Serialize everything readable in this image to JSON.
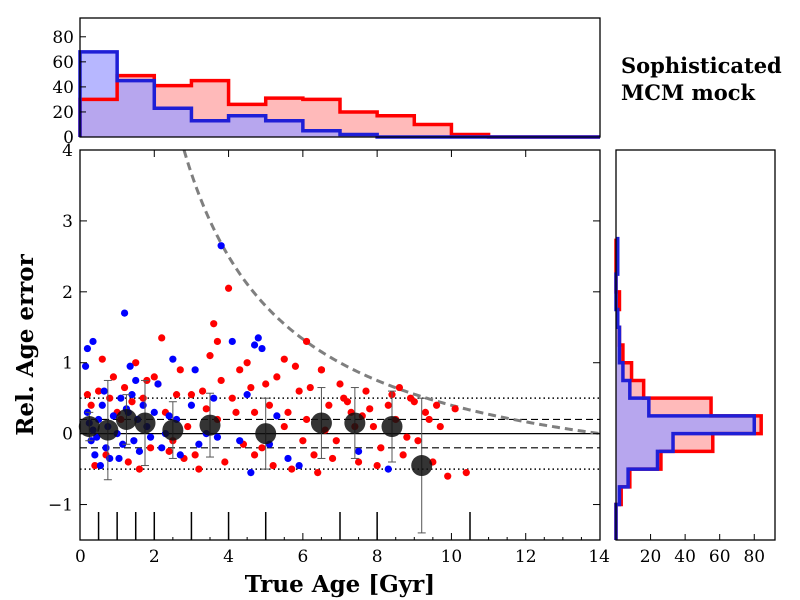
{
  "chart_data": [
    {
      "id": "top-histogram",
      "type": "histogram",
      "x_edges": [
        0,
        1,
        2,
        3,
        4,
        5,
        6,
        7,
        8,
        9,
        10,
        11,
        12,
        13,
        14
      ],
      "series": [
        {
          "name": "red",
          "color": "#ff0000",
          "fill": "#ffb3b3",
          "counts": [
            30,
            49,
            41,
            45,
            26,
            31,
            30,
            20,
            17,
            10,
            2,
            0,
            0,
            0
          ]
        },
        {
          "name": "blue",
          "color": "#1f1fd6",
          "fill": "#9f9fff",
          "counts": [
            68,
            45,
            23,
            13,
            17,
            13,
            5,
            2,
            0,
            0,
            0,
            0,
            0,
            0
          ]
        }
      ],
      "ylim": [
        0,
        95
      ],
      "yticks": [
        "0",
        "20",
        "40",
        "60",
        "80"
      ]
    },
    {
      "id": "main-scatter",
      "type": "scatter",
      "xlabel": "True Age [Gyr]",
      "ylabel": "Rel. Age error",
      "xlim": [
        0,
        14
      ],
      "ylim": [
        -1.5,
        4
      ],
      "xticks": [
        "0",
        "2",
        "4",
        "6",
        "8",
        "10",
        "12",
        "14"
      ],
      "yticks": [
        "−1",
        "0",
        "1",
        "2",
        "3",
        "4"
      ],
      "reference_lines": {
        "solid": 0,
        "dashed": [
          -0.2,
          0.2
        ],
        "dotted": [
          -0.5,
          0.5
        ]
      },
      "dashed_curve": "y = 14 / x − 1",
      "rug_x": [
        0.5,
        1.0,
        1.5,
        2.0,
        3.0,
        4.0,
        5.0,
        7.0,
        8.0,
        10.5
      ],
      "binned_means": [
        {
          "x": 0.25,
          "y": 0.1,
          "err": 0.2
        },
        {
          "x": 0.75,
          "y": 0.05,
          "err": 0.7
        },
        {
          "x": 1.25,
          "y": 0.2,
          "err": 0.35
        },
        {
          "x": 1.75,
          "y": 0.15,
          "err": 0.6
        },
        {
          "x": 2.5,
          "y": 0.05,
          "err": 0.4
        },
        {
          "x": 3.5,
          "y": 0.12,
          "err": 0.45
        },
        {
          "x": 5.0,
          "y": 0.0,
          "err": 0.5
        },
        {
          "x": 6.5,
          "y": 0.15,
          "err": 0.5
        },
        {
          "x": 7.4,
          "y": 0.15,
          "err": 0.5
        },
        {
          "x": 8.4,
          "y": 0.1,
          "err": 0.5
        },
        {
          "x": 9.2,
          "y": -0.45,
          "err": 0.95
        }
      ],
      "series": [
        {
          "name": "blue",
          "color": "#0000ff",
          "points": [
            [
              0.2,
              0.3
            ],
            [
              0.3,
              -0.1
            ],
            [
              0.25,
              0.15
            ],
            [
              0.35,
              0.05
            ],
            [
              0.4,
              -0.3
            ],
            [
              0.5,
              0.2
            ],
            [
              0.45,
              -0.05
            ],
            [
              0.6,
              0.4
            ],
            [
              0.7,
              -0.2
            ],
            [
              0.75,
              0.1
            ],
            [
              0.8,
              -0.35
            ],
            [
              0.9,
              0.25
            ],
            [
              1.0,
              0.0
            ],
            [
              1.1,
              0.5
            ],
            [
              1.15,
              -0.15
            ],
            [
              1.2,
              1.7
            ],
            [
              1.3,
              0.3
            ],
            [
              1.4,
              0.55
            ],
            [
              1.45,
              -0.1
            ],
            [
              1.5,
              0.75
            ],
            [
              1.55,
              0.2
            ],
            [
              1.6,
              -0.25
            ],
            [
              1.7,
              0.4
            ],
            [
              1.8,
              0.1
            ],
            [
              1.9,
              -0.05
            ],
            [
              2.0,
              0.3
            ],
            [
              2.2,
              -0.2
            ],
            [
              2.3,
              0.0
            ],
            [
              2.5,
              1.05
            ],
            [
              2.6,
              0.2
            ],
            [
              2.7,
              -0.3
            ],
            [
              3.0,
              0.4
            ],
            [
              3.2,
              -0.15
            ],
            [
              3.4,
              0.0
            ],
            [
              3.6,
              0.5
            ],
            [
              3.7,
              -0.05
            ],
            [
              3.8,
              2.65
            ],
            [
              4.1,
              1.3
            ],
            [
              4.3,
              -0.1
            ],
            [
              4.5,
              0.55
            ],
            [
              4.7,
              1.25
            ],
            [
              4.9,
              1.2
            ],
            [
              5.1,
              -0.15
            ],
            [
              5.3,
              0.25
            ],
            [
              5.6,
              -0.35
            ],
            [
              0.15,
              0.95
            ],
            [
              0.35,
              1.3
            ],
            [
              0.2,
              1.2
            ],
            [
              0.55,
              -0.45
            ],
            [
              1.35,
              0.95
            ],
            [
              1.05,
              -0.35
            ],
            [
              2.1,
              0.7
            ],
            [
              4.6,
              -0.55
            ],
            [
              7.5,
              -0.25
            ],
            [
              8.3,
              -0.5
            ],
            [
              3.1,
              0.9
            ],
            [
              0.65,
              0.6
            ],
            [
              1.25,
              0.35
            ],
            [
              2.4,
              0.25
            ],
            [
              4.8,
              1.35
            ],
            [
              5.9,
              -0.45
            ]
          ]
        },
        {
          "name": "red",
          "color": "#ff0000",
          "points": [
            [
              0.3,
              0.4
            ],
            [
              0.5,
              0.6
            ],
            [
              0.7,
              -0.3
            ],
            [
              0.9,
              0.8
            ],
            [
              1.1,
              0.2
            ],
            [
              1.3,
              -0.4
            ],
            [
              1.5,
              1.0
            ],
            [
              1.7,
              0.5
            ],
            [
              1.9,
              -0.2
            ],
            [
              2.1,
              0.7
            ],
            [
              2.3,
              0.3
            ],
            [
              2.5,
              -0.1
            ],
            [
              2.7,
              0.9
            ],
            [
              2.9,
              0.1
            ],
            [
              3.1,
              -0.3
            ],
            [
              3.3,
              0.6
            ],
            [
              3.5,
              1.1
            ],
            [
              3.7,
              0.2
            ],
            [
              3.9,
              -0.4
            ],
            [
              4.1,
              0.5
            ],
            [
              4.3,
              0.9
            ],
            [
              4.5,
              1.0
            ],
            [
              4.7,
              0.3
            ],
            [
              4.9,
              -0.2
            ],
            [
              5.1,
              0.4
            ],
            [
              5.3,
              0.8
            ],
            [
              5.5,
              0.1
            ],
            [
              5.7,
              -0.5
            ],
            [
              5.9,
              0.6
            ],
            [
              6.1,
              0.2
            ],
            [
              6.3,
              -0.3
            ],
            [
              6.5,
              0.9
            ],
            [
              6.7,
              0.4
            ],
            [
              6.9,
              -0.1
            ],
            [
              7.1,
              0.5
            ],
            [
              7.3,
              0.3
            ],
            [
              7.5,
              -0.4
            ],
            [
              7.7,
              0.6
            ],
            [
              7.9,
              0.1
            ],
            [
              8.1,
              -0.2
            ],
            [
              8.3,
              0.4
            ],
            [
              8.5,
              0.2
            ],
            [
              8.7,
              -0.3
            ],
            [
              8.9,
              0.5
            ],
            [
              9.1,
              -0.1
            ],
            [
              9.3,
              0.3
            ],
            [
              9.5,
              -0.4
            ],
            [
              9.7,
              0.1
            ],
            [
              9.9,
              -0.6
            ],
            [
              10.1,
              0.35
            ],
            [
              4.0,
              2.05
            ],
            [
              3.6,
              1.55
            ],
            [
              6.1,
              1.3
            ],
            [
              6.5,
              0.9
            ],
            [
              5.5,
              1.05
            ],
            [
              4.2,
              0.3
            ],
            [
              7.0,
              0.7
            ],
            [
              8.4,
              0.55
            ],
            [
              9.0,
              0.45
            ],
            [
              2.0,
              0.8
            ],
            [
              1.8,
              0.75
            ],
            [
              1.2,
              0.65
            ],
            [
              0.8,
              0.5
            ],
            [
              3.0,
              0.55
            ],
            [
              4.7,
              -0.3
            ],
            [
              5.2,
              -0.45
            ],
            [
              6.0,
              -0.1
            ],
            [
              6.8,
              -0.35
            ],
            [
              7.6,
              0.25
            ],
            [
              8.8,
              -0.05
            ],
            [
              5.8,
              0.95
            ],
            [
              2.2,
              1.35
            ],
            [
              0.6,
              1.05
            ],
            [
              3.2,
              -0.5
            ],
            [
              4.4,
              -0.15
            ],
            [
              6.6,
              0.05
            ],
            [
              7.2,
              0.45
            ],
            [
              8.0,
              -0.45
            ],
            [
              9.4,
              0.2
            ],
            [
              10.4,
              -0.55
            ],
            [
              0.4,
              -0.45
            ],
            [
              1.6,
              -0.5
            ],
            [
              2.6,
              0.55
            ],
            [
              3.8,
              0.75
            ],
            [
              5.0,
              0.7
            ],
            [
              6.2,
              0.65
            ],
            [
              7.8,
              0.35
            ],
            [
              9.6,
              0.4
            ],
            [
              4.6,
              0.65
            ],
            [
              3.4,
              0.35
            ],
            [
              2.8,
              -0.35
            ],
            [
              1.4,
              0.45
            ],
            [
              0.2,
              0.55
            ],
            [
              5.6,
              0.3
            ],
            [
              6.4,
              -0.55
            ],
            [
              7.4,
              0.1
            ],
            [
              8.6,
              0.65
            ],
            [
              1.0,
              0.3
            ],
            [
              2.4,
              -0.25
            ],
            [
              3.7,
              1.3
            ]
          ]
        }
      ]
    },
    {
      "id": "right-histogram",
      "type": "histogram",
      "orientation": "horizontal",
      "y_edges": [
        -1.5,
        -1.25,
        -1.0,
        -0.75,
        -0.5,
        -0.25,
        0,
        0.25,
        0.5,
        0.75,
        1.0,
        1.25,
        1.5,
        1.75,
        2.0,
        2.25,
        2.5,
        2.75
      ],
      "series": [
        {
          "name": "red",
          "color": "#ff0000",
          "fill": "#ffb3b3",
          "counts": [
            0,
            0,
            3,
            8,
            26,
            56,
            84,
            55,
            16,
            9,
            4,
            2,
            1,
            2,
            0,
            0,
            0
          ]
        },
        {
          "name": "blue",
          "color": "#1f1fd6",
          "fill": "#9f9fff",
          "counts": [
            0,
            0,
            2,
            7,
            24,
            33,
            80,
            19,
            8,
            4,
            2,
            2,
            1,
            0,
            0,
            1,
            1
          ]
        }
      ],
      "xlim": [
        0,
        92
      ],
      "xticks": [
        "20",
        "40",
        "60",
        "80"
      ]
    }
  ],
  "annotation": {
    "line1": "Sophisticated",
    "line2": "MCM mock"
  }
}
